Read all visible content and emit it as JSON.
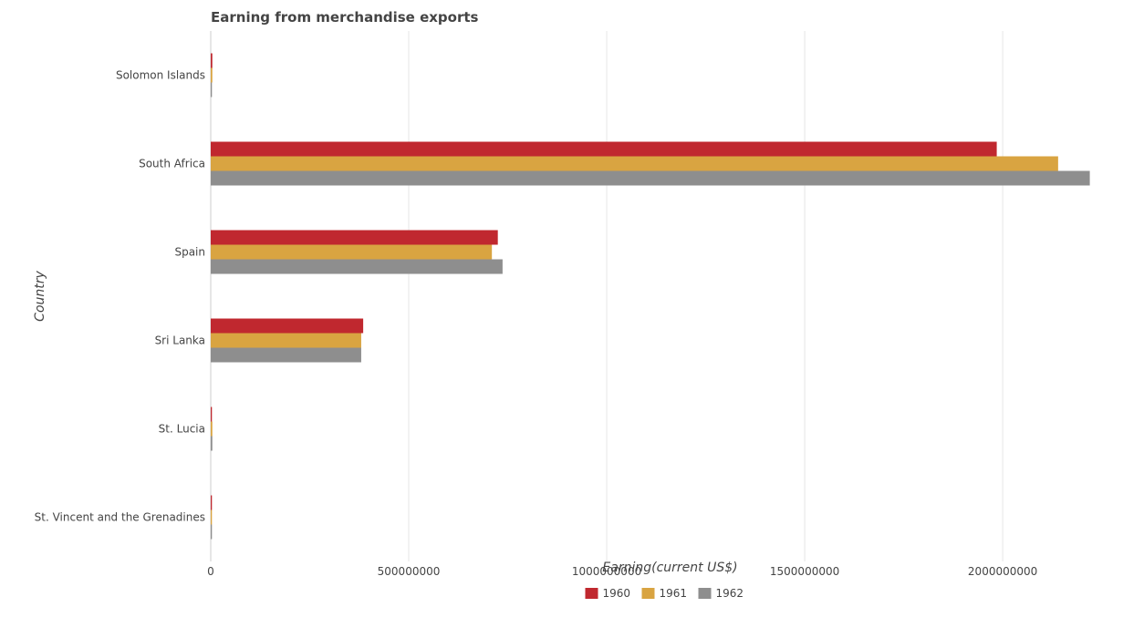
{
  "chart_data": {
    "type": "bar",
    "orientation": "horizontal",
    "title": "Earning from merchandise exports",
    "xlabel": "Earning(current US$)",
    "ylabel": "Country",
    "categories": [
      "Solomon Islands",
      "South Africa",
      "Spain",
      "Sri Lanka",
      "St. Lucia",
      "St. Vincent and the Grenadines"
    ],
    "series": [
      {
        "name": "1960",
        "color": "#c0282f",
        "values": [
          4000000,
          1985000000,
          725000000,
          385000000,
          3000000,
          3000000
        ]
      },
      {
        "name": "1961",
        "color": "#d9a441",
        "values": [
          4000000,
          2140000000,
          710000000,
          380000000,
          4000000,
          3000000
        ]
      },
      {
        "name": "1962",
        "color": "#8e8e8e",
        "values": [
          3000000,
          2220000000,
          737000000,
          380000000,
          4000000,
          3000000
        ]
      }
    ],
    "xlim": [
      0,
      2320000000
    ],
    "xticks": [
      0,
      500000000,
      1000000000,
      1500000000,
      2000000000
    ],
    "xtick_labels": [
      "0",
      "500000000",
      "1000000000",
      "1500000000",
      "2000000000"
    ],
    "grid": true,
    "legend_position": "bottom-center"
  }
}
